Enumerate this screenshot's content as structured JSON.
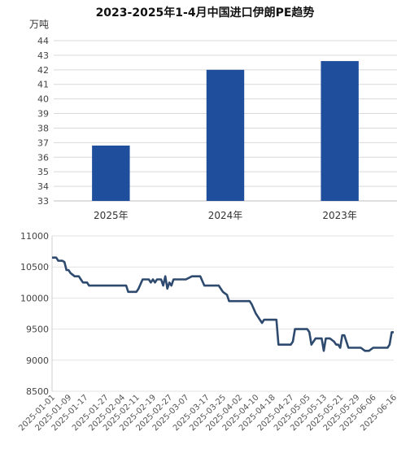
{
  "chart_data": [
    {
      "type": "bar",
      "title": "2023-2025年1-4月中国进口伊朗PE趋势",
      "unit_label": "万吨",
      "categories": [
        "2025年",
        "2024年",
        "2023年"
      ],
      "values": [
        36.8,
        42,
        42.6
      ],
      "ylim": [
        33,
        44
      ],
      "yticks": [
        33,
        34,
        35,
        36,
        37,
        38,
        39,
        40,
        41,
        42,
        43,
        44
      ],
      "grid": true,
      "color": "#1f4e9c"
    },
    {
      "type": "line",
      "title": "",
      "xlabel": "",
      "ylabel": "",
      "ylim": [
        8500,
        11000
      ],
      "yticks": [
        8500,
        9000,
        9500,
        10000,
        10500,
        11000
      ],
      "xtick_labels": [
        "2025-01-01",
        "2025-01-09",
        "2025-01-17",
        "2025-01-27",
        "2025-02-04",
        "2025-02-11",
        "2025-02-19",
        "2025-02-27",
        "2025-03-07",
        "2025-03-17",
        "2025-03-25",
        "2025-04-02",
        "2025-04-10",
        "2025-04-18",
        "2025-04-27",
        "2025-05-05",
        "2025-05-13",
        "2025-05-21",
        "2025-05-29",
        "2025-06-06",
        "2025-06-16"
      ],
      "xlim": [
        "2025-01-01",
        "2025-06-16"
      ],
      "color": "#2e4a6e",
      "series": [
        {
          "x": [
            "2025-01-01",
            "2025-01-03",
            "2025-01-04",
            "2025-01-06",
            "2025-01-07",
            "2025-01-08",
            "2025-01-09",
            "2025-01-10",
            "2025-01-12",
            "2025-01-14",
            "2025-01-15",
            "2025-01-16",
            "2025-01-17",
            "2025-01-18",
            "2025-01-19",
            "2025-01-22",
            "2025-01-27",
            "2025-01-30",
            "2025-02-04",
            "2025-02-06",
            "2025-02-07",
            "2025-02-10",
            "2025-02-11",
            "2025-02-12",
            "2025-02-14",
            "2025-02-16",
            "2025-02-17",
            "2025-02-18",
            "2025-02-19",
            "2025-02-20",
            "2025-02-21",
            "2025-02-23",
            "2025-02-24",
            "2025-02-25",
            "2025-02-26",
            "2025-02-27",
            "2025-02-28",
            "2025-03-01",
            "2025-03-03",
            "2025-03-05",
            "2025-03-07",
            "2025-03-10",
            "2025-03-12",
            "2025-03-14",
            "2025-03-16",
            "2025-03-17",
            "2025-03-18",
            "2025-03-20",
            "2025-03-23",
            "2025-03-25",
            "2025-03-27",
            "2025-03-28",
            "2025-03-30",
            "2025-04-01",
            "2025-04-02",
            "2025-04-04",
            "2025-04-07",
            "2025-04-08",
            "2025-04-10",
            "2025-04-11",
            "2025-04-12",
            "2025-04-13",
            "2025-04-14",
            "2025-04-16",
            "2025-04-18",
            "2025-04-20",
            "2025-04-21",
            "2025-04-24",
            "2025-04-27",
            "2025-04-28",
            "2025-04-29",
            "2025-05-02",
            "2025-05-05",
            "2025-05-06",
            "2025-05-07",
            "2025-05-09",
            "2025-05-11",
            "2025-05-12",
            "2025-05-13",
            "2025-05-14",
            "2025-05-16",
            "2025-05-18",
            "2025-05-19",
            "2025-05-20",
            "2025-05-21",
            "2025-05-22",
            "2025-05-23",
            "2025-05-25",
            "2025-05-27",
            "2025-05-29",
            "2025-05-31",
            "2025-06-02",
            "2025-06-04",
            "2025-06-06",
            "2025-06-08",
            "2025-06-10",
            "2025-06-13",
            "2025-06-14",
            "2025-06-15",
            "2025-06-16"
          ],
          "y": [
            10650,
            10650,
            10600,
            10600,
            10580,
            10450,
            10450,
            10400,
            10350,
            10350,
            10300,
            10250,
            10250,
            10250,
            10200,
            10200,
            10200,
            10200,
            10200,
            10200,
            10100,
            10100,
            10100,
            10150,
            10300,
            10300,
            10300,
            10250,
            10300,
            10250,
            10300,
            10300,
            10200,
            10350,
            10150,
            10250,
            10200,
            10300,
            10300,
            10300,
            10300,
            10350,
            10350,
            10350,
            10200,
            10200,
            10200,
            10200,
            10200,
            10100,
            10050,
            9950,
            9950,
            9950,
            9950,
            9950,
            9950,
            9900,
            9750,
            9700,
            9650,
            9600,
            9650,
            9650,
            9650,
            9650,
            9250,
            9250,
            9250,
            9300,
            9500,
            9500,
            9500,
            9450,
            9250,
            9350,
            9350,
            9350,
            9150,
            9350,
            9350,
            9300,
            9250,
            9250,
            9200,
            9400,
            9400,
            9200,
            9200,
            9200,
            9200,
            9150,
            9150,
            9200,
            9200,
            9200,
            9200,
            9250,
            9450,
            9450
          ]
        }
      ]
    }
  ]
}
